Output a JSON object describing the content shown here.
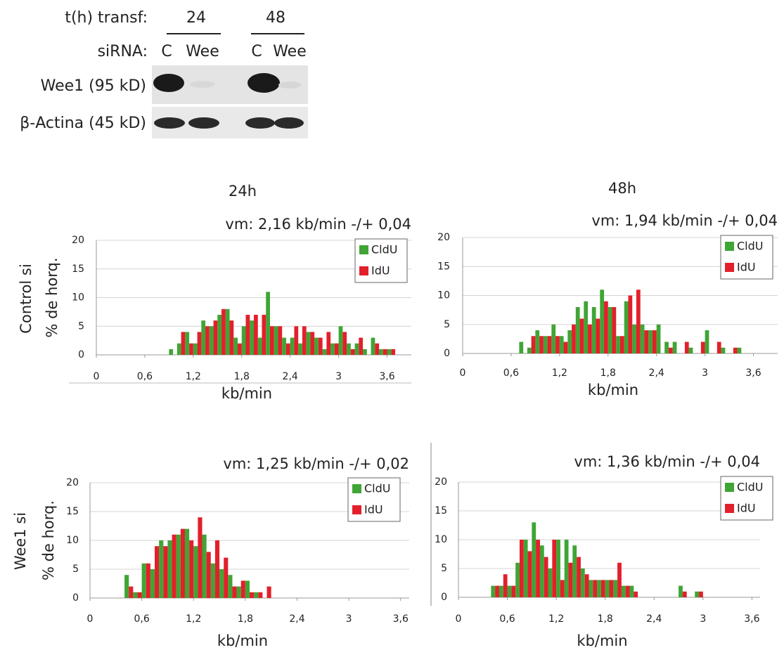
{
  "blot": {
    "time_label": "t(h) transf:",
    "times": [
      "24",
      "48"
    ],
    "sirna_label": "siRNA:",
    "lanes": [
      "C",
      "Wee",
      "C",
      "Wee"
    ],
    "bands": [
      "Wee1 (95 kD)",
      "β-Actina (45 kD)"
    ]
  },
  "columns": [
    "24h",
    "48h"
  ],
  "rows": [
    "Control si",
    "Wee1 si"
  ],
  "chart_data": [
    {
      "type": "histogram",
      "title": "vm: 2,16 kb/min -/+ 0,04",
      "x_label": "kb/min",
      "y_label": "% de horq.",
      "bins": [
        0,
        0.1,
        0.2,
        0.3,
        0.4,
        0.5,
        0.6,
        0.7,
        0.8,
        0.9,
        1.0,
        1.1,
        1.2,
        1.3,
        1.4,
        1.5,
        1.6,
        1.7,
        1.8,
        1.9,
        2.0,
        2.1,
        2.2,
        2.3,
        2.4,
        2.5,
        2.6,
        2.7,
        2.8,
        2.9,
        3.0,
        3.1,
        3.2,
        3.3,
        3.4,
        3.5,
        3.6,
        3.7,
        3.8,
        3.9
      ],
      "series": [
        {
          "name": "CldU",
          "color": "#3fa535",
          "values": [
            0,
            0,
            0,
            0,
            0,
            0,
            0,
            0,
            0,
            1,
            2,
            4,
            2,
            6,
            5,
            7,
            8,
            3,
            5,
            6,
            3,
            11,
            5,
            3,
            3,
            2,
            4,
            3,
            1,
            2,
            5,
            2,
            2,
            1,
            3,
            1,
            1,
            0,
            0
          ]
        },
        {
          "name": "IdU",
          "color": "#e2202b",
          "values": [
            0,
            0,
            0,
            0,
            0,
            0,
            0,
            0,
            0,
            0,
            4,
            2,
            4,
            5,
            6,
            8,
            6,
            2,
            7,
            7,
            7,
            5,
            5,
            2,
            5,
            5,
            4,
            3,
            4,
            2,
            4,
            1,
            3,
            0,
            2,
            1,
            1,
            0,
            0
          ]
        }
      ],
      "xlim": [
        0,
        3.9
      ],
      "ylim": [
        0,
        20
      ],
      "xticks": [
        0,
        {
          "value": 0.6,
          "label": "0,6"
        },
        {
          "value": 1.2,
          "label": "1,2"
        },
        {
          "value": 1.8,
          "label": "1,8"
        },
        {
          "value": 2.4,
          "label": "2,4"
        },
        3,
        {
          "value": 3.6,
          "label": "3,6"
        }
      ],
      "yticks": [
        0,
        5,
        10,
        15,
        20
      ],
      "grid": true,
      "legend": "top-right"
    },
    {
      "type": "histogram",
      "title": "vm: 1,94 kb/min -/+ 0,04",
      "x_label": "kb/min",
      "bins": [
        0,
        0.1,
        0.2,
        0.3,
        0.4,
        0.5,
        0.6,
        0.7,
        0.8,
        0.9,
        1.0,
        1.1,
        1.2,
        1.3,
        1.4,
        1.5,
        1.6,
        1.7,
        1.8,
        1.9,
        2.0,
        2.1,
        2.2,
        2.3,
        2.4,
        2.5,
        2.6,
        2.7,
        2.8,
        2.9,
        3.0,
        3.1,
        3.2,
        3.3,
        3.4,
        3.5,
        3.6,
        3.7,
        3.8,
        3.9
      ],
      "series": [
        {
          "name": "CldU",
          "color": "#3fa535",
          "values": [
            0,
            0,
            0,
            0,
            0,
            0,
            0,
            2,
            1,
            4,
            3,
            5,
            3,
            4,
            8,
            9,
            8,
            11,
            8,
            3,
            9,
            5,
            5,
            4,
            5,
            2,
            2,
            0,
            1,
            0,
            4,
            0,
            1,
            0,
            1,
            0,
            0,
            0,
            0
          ]
        },
        {
          "name": "IdU",
          "color": "#e2202b",
          "values": [
            0,
            0,
            0,
            0,
            0,
            0,
            0,
            0,
            3,
            3,
            3,
            3,
            2,
            5,
            6,
            5,
            6,
            9,
            8,
            3,
            10,
            11,
            4,
            4,
            0,
            1,
            0,
            2,
            0,
            2,
            0,
            2,
            0,
            1,
            0,
            0,
            0,
            0,
            0
          ]
        }
      ],
      "xlim": [
        0,
        3.9
      ],
      "ylim": [
        0,
        20
      ],
      "xticks": [
        0,
        {
          "value": 0.6,
          "label": "0,6"
        },
        {
          "value": 1.2,
          "label": "1,2"
        },
        {
          "value": 1.8,
          "label": "1,8"
        },
        {
          "value": 2.4,
          "label": "2,4"
        },
        3,
        {
          "value": 3.6,
          "label": "3,6"
        }
      ],
      "yticks": [
        0,
        5,
        10,
        15,
        20
      ],
      "grid": true,
      "legend": "top-right"
    },
    {
      "type": "histogram",
      "title": "vm: 1,25 kb/min  -/+ 0,02",
      "x_label": "kb/min",
      "y_label": "% de horq.",
      "bins": [
        0,
        0.1,
        0.2,
        0.3,
        0.4,
        0.5,
        0.6,
        0.7,
        0.8,
        0.9,
        1.0,
        1.1,
        1.2,
        1.3,
        1.4,
        1.5,
        1.6,
        1.7,
        1.8,
        1.9,
        2.0,
        2.1,
        2.2,
        2.3,
        2.4,
        2.5,
        2.6,
        2.7,
        2.8,
        2.9,
        3.0,
        3.1,
        3.2,
        3.3,
        3.4,
        3.5,
        3.6,
        3.7
      ],
      "series": [
        {
          "name": "CldU",
          "color": "#3fa535",
          "values": [
            0,
            0,
            0,
            0,
            4,
            1,
            6,
            5,
            10,
            10,
            11,
            12,
            9,
            11,
            6,
            5,
            4,
            2,
            3,
            1,
            0,
            0,
            0,
            0,
            0,
            0,
            0,
            0,
            0,
            0,
            0,
            0,
            0,
            0,
            0,
            0,
            0
          ]
        },
        {
          "name": "IdU",
          "color": "#e2202b",
          "values": [
            0,
            0,
            0,
            0,
            2,
            1,
            6,
            9,
            9,
            11,
            12,
            10,
            14,
            8,
            10,
            7,
            2,
            3,
            1,
            1,
            2,
            0,
            0,
            0,
            0,
            0,
            0,
            0,
            0,
            0,
            0,
            0,
            0,
            0,
            0,
            0,
            0
          ]
        }
      ],
      "xlim": [
        0,
        3.7
      ],
      "ylim": [
        0,
        20
      ],
      "xticks": [
        0,
        {
          "value": 0.6,
          "label": "0,6"
        },
        {
          "value": 1.2,
          "label": "1,2"
        },
        {
          "value": 1.8,
          "label": "1,8"
        },
        {
          "value": 2.4,
          "label": "2,4"
        },
        3,
        {
          "value": 3.6,
          "label": "3,6"
        }
      ],
      "yticks": [
        0,
        5,
        10,
        15,
        20
      ],
      "grid": true,
      "legend": "top-right"
    },
    {
      "type": "histogram",
      "title": "vm: 1,36 kb/min  -/+ 0,04",
      "x_label": "kb/min",
      "bins": [
        0,
        0.1,
        0.2,
        0.3,
        0.4,
        0.5,
        0.6,
        0.7,
        0.8,
        0.9,
        1.0,
        1.1,
        1.2,
        1.3,
        1.4,
        1.5,
        1.6,
        1.7,
        1.8,
        1.9,
        2.0,
        2.1,
        2.2,
        2.3,
        2.4,
        2.5,
        2.6,
        2.7,
        2.8,
        2.9,
        3.0,
        3.1,
        3.2,
        3.3,
        3.4,
        3.5,
        3.6,
        3.7
      ],
      "series": [
        {
          "name": "CldU",
          "color": "#3fa535",
          "values": [
            0,
            0,
            0,
            0,
            2,
            2,
            2,
            6,
            10,
            13,
            9,
            5,
            10,
            10,
            9,
            5,
            3,
            3,
            3,
            3,
            2,
            2,
            0,
            0,
            0,
            0,
            0,
            2,
            0,
            1,
            0,
            0,
            0,
            0,
            0,
            0,
            0
          ]
        },
        {
          "name": "IdU",
          "color": "#e2202b",
          "values": [
            0,
            0,
            0,
            0,
            2,
            4,
            2,
            10,
            8,
            10,
            7,
            10,
            3,
            6,
            7,
            4,
            3,
            3,
            3,
            6,
            2,
            1,
            0,
            0,
            0,
            0,
            0,
            1,
            0,
            1,
            0,
            0,
            0,
            0,
            0,
            0,
            0
          ]
        }
      ],
      "xlim": [
        0,
        3.7
      ],
      "ylim": [
        0,
        20
      ],
      "xticks": [
        0,
        {
          "value": 0.6,
          "label": "0,6"
        },
        {
          "value": 1.2,
          "label": "1,2"
        },
        {
          "value": 1.8,
          "label": "1,8"
        },
        {
          "value": 2.4,
          "label": "2,4"
        },
        3,
        {
          "value": 3.6,
          "label": "3,6"
        }
      ],
      "yticks": [
        0,
        5,
        10,
        15,
        20
      ],
      "grid": true,
      "legend": "top-right"
    }
  ]
}
